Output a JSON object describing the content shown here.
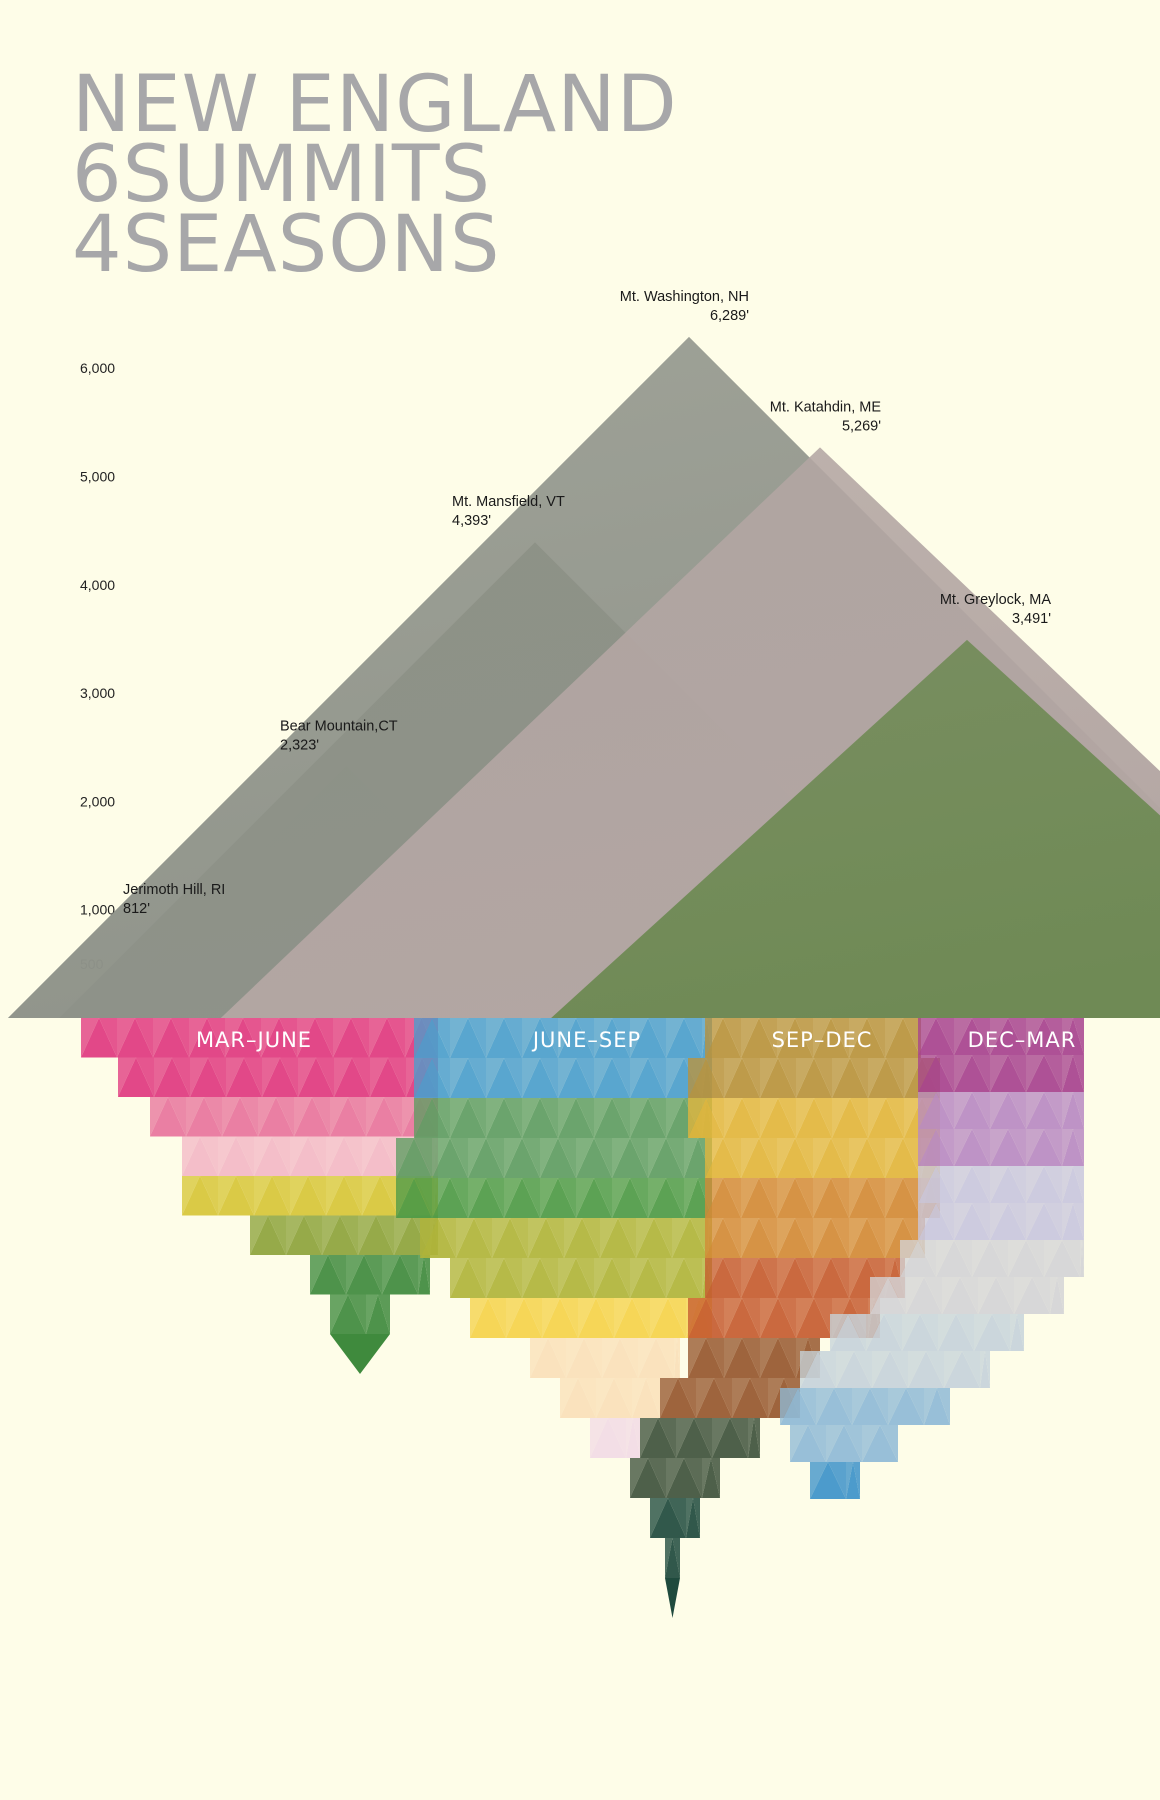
{
  "title": [
    "NEW ENGLAND",
    "6SUMMITS",
    "4SEASONS"
  ],
  "chart_data": {
    "type": "bar",
    "title": "NEW ENGLAND 6SUMMITS 4SEASONS",
    "y_ticks": [
      "6,000",
      "5,000",
      "4,000",
      "3,000",
      "2,000",
      "1,000",
      "500"
    ],
    "y_tick_values": [
      6000,
      5000,
      4000,
      3000,
      2000,
      1000,
      500
    ],
    "ylim": [
      0,
      6289
    ],
    "categories": [
      "Jerimoth Hill, RI",
      "Bear Mountain,CT",
      "Mt. Mansfield, VT",
      "Mt. Washington, NH",
      "Mt. Katahdin, ME",
      "Mt. Greylock, MA"
    ],
    "elevation_labels": [
      "812'",
      "2,323'",
      "4,393'",
      "6,289'",
      "5,269'",
      "3,491'"
    ],
    "values": [
      812,
      2323,
      4393,
      6289,
      5269,
      3491
    ],
    "photo_colors": [
      "#5a6b3c",
      "#8a9160",
      "#6a7456",
      "#8f938a",
      "#b3a6a3",
      "#6f8a55"
    ],
    "seasons": [
      {
        "label": "MAR–JUNE",
        "colors": [
          "#e0387f",
          "#e8749c",
          "#f3b9c6",
          "#d7c637",
          "#8da33b",
          "#3f8a3d"
        ]
      },
      {
        "label": "JUNE–SEP",
        "colors": [
          "#4b9ecc",
          "#5e9c62",
          "#4e9a46",
          "#b0b43a",
          "#f5d24a",
          "#fae0b8",
          "#f2dbe5"
        ]
      },
      {
        "label": "SEP–DEC",
        "colors": [
          "#b9923c",
          "#e2b53c",
          "#d38a36",
          "#c65c30",
          "#96572e",
          "#3f523c",
          "#1f4a3d"
        ]
      },
      {
        "label": "DEC–MAR",
        "colors": [
          "#a7428e",
          "#b98ac2",
          "#c9c7dd",
          "#d4d4d6",
          "#c7d3da",
          "#8fbad6",
          "#3d92c9"
        ]
      }
    ]
  }
}
